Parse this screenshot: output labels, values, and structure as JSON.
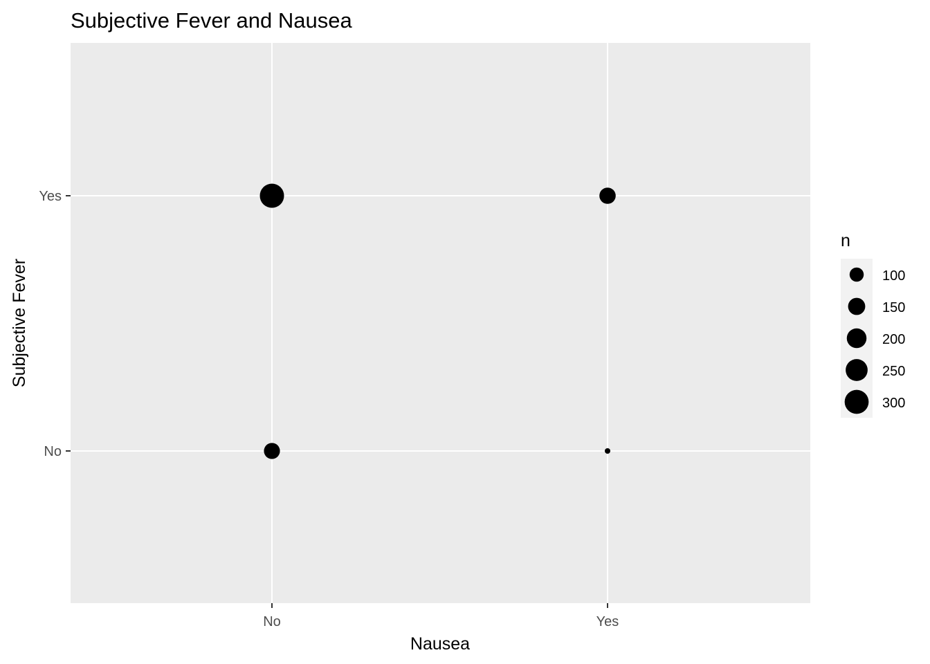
{
  "chart_data": {
    "type": "scatter",
    "title": "Subjective Fever and Nausea",
    "xlabel": "Nausea",
    "ylabel": "Subjective Fever",
    "x_categories": [
      "No",
      "Yes"
    ],
    "y_categories": [
      "No",
      "Yes"
    ],
    "points": [
      {
        "x": "No",
        "y": "Yes",
        "n": 305
      },
      {
        "x": "Yes",
        "y": "Yes",
        "n": 135
      },
      {
        "x": "No",
        "y": "No",
        "n": 130
      },
      {
        "x": "Yes",
        "y": "No",
        "n": 10
      }
    ],
    "legend": {
      "title": "n",
      "placement": "right",
      "breaks": [
        100,
        150,
        200,
        250,
        300
      ],
      "labels": [
        "100",
        "150",
        "200",
        "250",
        "300"
      ]
    },
    "colors": {
      "panel": "#ebebeb",
      "grid": "#ffffff",
      "point": "#000000"
    },
    "grid": true
  }
}
